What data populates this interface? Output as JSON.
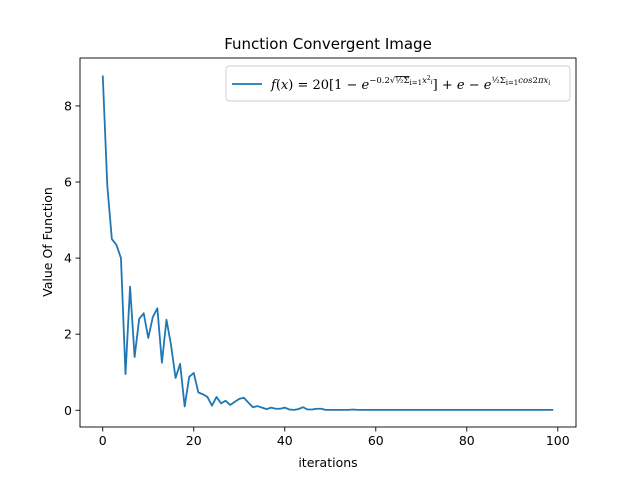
{
  "chart_data": {
    "type": "line",
    "title": "Function Convergent Image",
    "xlabel": "iterations",
    "ylabel": "Value Of Function",
    "xlim": [
      -5,
      104
    ],
    "ylim": [
      -0.44,
      9.26
    ],
    "xticks": [
      0,
      20,
      40,
      60,
      80,
      100
    ],
    "yticks": [
      0,
      2,
      4,
      6,
      8
    ],
    "grid": false,
    "legend_placement": "upper right",
    "line_color": "#1f77b4",
    "series": [
      {
        "name": "f(x)=20[1-e^{-0.2√(1/2 Σ x_i^2)}]+e-e^{1/2 Σ cos2πx_i}",
        "x": [
          0,
          1,
          2,
          3,
          4,
          5,
          6,
          7,
          8,
          9,
          10,
          11,
          12,
          13,
          14,
          15,
          16,
          17,
          18,
          19,
          20,
          21,
          22,
          23,
          24,
          25,
          26,
          27,
          28,
          29,
          30,
          31,
          32,
          33,
          34,
          35,
          36,
          37,
          38,
          39,
          40,
          41,
          42,
          43,
          44,
          45,
          46,
          47,
          48,
          49,
          50,
          51,
          52,
          53,
          54,
          55,
          56,
          57,
          58,
          59,
          60,
          61,
          62,
          63,
          64,
          65,
          66,
          67,
          68,
          69,
          70,
          71,
          72,
          73,
          74,
          75,
          76,
          77,
          78,
          79,
          80,
          81,
          82,
          83,
          84,
          85,
          86,
          87,
          88,
          89,
          90,
          91,
          92,
          93,
          94,
          95,
          96,
          97,
          98,
          99
        ],
        "y": [
          8.8,
          5.9,
          4.5,
          4.35,
          4.0,
          0.95,
          3.25,
          1.4,
          2.4,
          2.55,
          1.9,
          2.45,
          2.68,
          1.25,
          2.38,
          1.72,
          0.85,
          1.22,
          0.1,
          0.88,
          0.98,
          0.47,
          0.42,
          0.35,
          0.12,
          0.35,
          0.18,
          0.25,
          0.14,
          0.22,
          0.3,
          0.33,
          0.2,
          0.08,
          0.11,
          0.07,
          0.03,
          0.07,
          0.04,
          0.04,
          0.07,
          0.02,
          0.01,
          0.03,
          0.08,
          0.02,
          0.02,
          0.04,
          0.04,
          0.01,
          0.01,
          0.01,
          0.01,
          0.01,
          0.01,
          0.02,
          0.01,
          0.01,
          0.01,
          0.01,
          0.01,
          0.01,
          0.01,
          0.01,
          0.01,
          0.01,
          0.01,
          0.01,
          0.01,
          0.01,
          0.01,
          0.01,
          0.01,
          0.01,
          0.01,
          0.01,
          0.01,
          0.01,
          0.01,
          0.01,
          0.01,
          0.01,
          0.01,
          0.01,
          0.01,
          0.01,
          0.01,
          0.01,
          0.01,
          0.01,
          0.01,
          0.01,
          0.01,
          0.01,
          0.01,
          0.01,
          0.01,
          0.01,
          0.01,
          0.01
        ]
      }
    ]
  }
}
